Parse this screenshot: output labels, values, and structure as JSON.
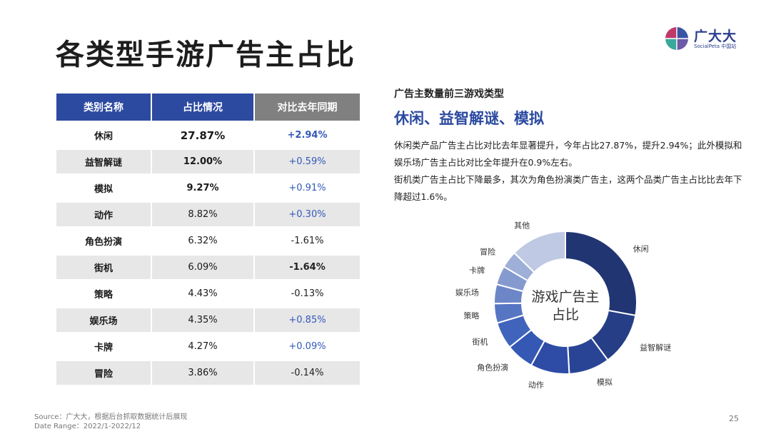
{
  "title": "各类型手游广告主占比",
  "logo": {
    "name": "广大大",
    "sub": "SocialPeta 中国站"
  },
  "table": {
    "headers": [
      "类别名称",
      "占比情况",
      "对比去年同期"
    ],
    "rows": [
      {
        "category": "休闲",
        "share": "27.87%",
        "change": "+2.94%"
      },
      {
        "category": "益智解谜",
        "share": "12.00%",
        "change": "+0.59%"
      },
      {
        "category": "模拟",
        "share": "9.27%",
        "change": "+0.91%"
      },
      {
        "category": "动作",
        "share": "8.82%",
        "change": "+0.30%"
      },
      {
        "category": "角色扮演",
        "share": "6.32%",
        "change": "-1.61%"
      },
      {
        "category": "街机",
        "share": "6.09%",
        "change": "-1.64%"
      },
      {
        "category": "策略",
        "share": "4.43%",
        "change": "-0.13%"
      },
      {
        "category": "娱乐场",
        "share": "4.35%",
        "change": "+0.85%"
      },
      {
        "category": "卡牌",
        "share": "4.27%",
        "change": "+0.09%"
      },
      {
        "category": "冒险",
        "share": "3.86%",
        "change": "-0.14%"
      }
    ]
  },
  "insight": {
    "sub_heading": "广告主数量前三游戏类型",
    "heading": "休闲、益智解谜、模拟",
    "para1": "休闲类产品广告主占比对比去年显著提升，今年占比27.87%，提升2.94%；此外模拟和娱乐场广告主占比对比全年提升在0.9%左右。",
    "para2": "街机类广告主占比下降最多，其次为角色扮演类广告主，这两个品类广告主占比比去年下降超过1.6%。"
  },
  "chart_data": {
    "type": "pie",
    "title": "游戏广告主占比",
    "labels": [
      "休闲",
      "益智解谜",
      "模拟",
      "动作",
      "角色扮演",
      "街机",
      "策略",
      "娱乐场",
      "卡牌",
      "冒险",
      "其他"
    ],
    "values": [
      27.87,
      12.0,
      9.27,
      8.82,
      6.32,
      6.09,
      4.43,
      4.35,
      4.27,
      3.86,
      12.72
    ],
    "colors": [
      "#213573",
      "#263e86",
      "#2a4495",
      "#2e4ca6",
      "#3458b4",
      "#4064bc",
      "#5675c2",
      "#6d86c8",
      "#859acf",
      "#9eb0d8",
      "#c0c9e3"
    ]
  },
  "footer": {
    "source": "Source：广大大，根据后台抓取数据统计后展现",
    "range": "Date Range：2022/1-2022/12"
  },
  "page_number": "25"
}
